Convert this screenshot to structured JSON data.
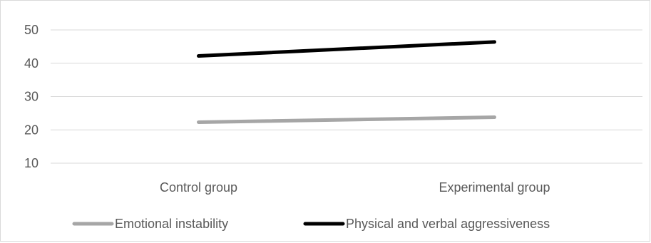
{
  "chart_data": {
    "type": "line",
    "categories": [
      "Control group",
      "Experimental group"
    ],
    "series": [
      {
        "name": "Emotional instability",
        "values": [
          22.3,
          23.8
        ],
        "color": "#a6a6a6"
      },
      {
        "name": "Physical and verbal aggressiveness",
        "values": [
          42.2,
          46.4
        ],
        "color": "#000000"
      }
    ],
    "y_ticks": [
      "10",
      "20",
      "30",
      "40",
      "50"
    ],
    "ylim": [
      10,
      50
    ],
    "grid": true,
    "legend_position": "bottom"
  }
}
